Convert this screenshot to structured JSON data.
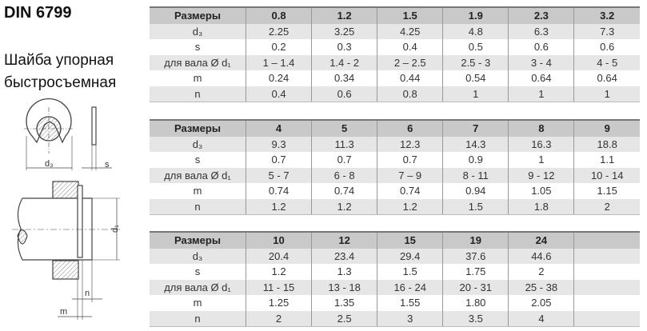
{
  "title": "DIN 6799",
  "subtitle_lines": [
    "Шайба упорная",
    "быстросъемная"
  ],
  "drawing": {
    "labels": {
      "d3": "d₃",
      "s": "s",
      "d1": "d₁",
      "n": "n",
      "m": "m"
    }
  },
  "tables": [
    {
      "header": [
        "Размеры",
        "0.8",
        "1.2",
        "1.5",
        "1.9",
        "2.3",
        "3.2"
      ],
      "rows": [
        [
          "d₃",
          "2.25",
          "3.25",
          "4.25",
          "4.8",
          "6.3",
          "7.3"
        ],
        [
          "s",
          "0.2",
          "0.3",
          "0.4",
          "0.5",
          "0.6",
          "0.6"
        ],
        [
          "для вала Ø d₁",
          "1 – 1.4",
          "1.4 - 2",
          "2 – 2.5",
          "2.5 - 3",
          "3 - 4",
          "4 - 5"
        ],
        [
          "m",
          "0.24",
          "0.34",
          "0.44",
          "0.54",
          "0.64",
          "0.64"
        ],
        [
          "n",
          "0.4",
          "0.6",
          "0.8",
          "1",
          "1",
          "1"
        ]
      ]
    },
    {
      "header": [
        "Размеры",
        "4",
        "5",
        "6",
        "7",
        "8",
        "9"
      ],
      "rows": [
        [
          "d₃",
          "9.3",
          "11.3",
          "12.3",
          "14.3",
          "16.3",
          "18.8"
        ],
        [
          "s",
          "0.7",
          "0.7",
          "0.7",
          "0.9",
          "1",
          "1.1"
        ],
        [
          "для вала Ø d₁",
          "5 - 7",
          "6 - 8",
          "7 – 9",
          "8 - 11",
          "9 - 12",
          "10 - 14"
        ],
        [
          "m",
          "0.74",
          "0.74",
          "0.74",
          "0.94",
          "1.05",
          "1.15"
        ],
        [
          "n",
          "1.2",
          "1.2",
          "1.2",
          "1.5",
          "1.8",
          "2"
        ]
      ]
    },
    {
      "header": [
        "Размеры",
        "10",
        "12",
        "15",
        "19",
        "24",
        ""
      ],
      "rows": [
        [
          "d₃",
          "20.4",
          "23.4",
          "29.4",
          "37.6",
          "44.6",
          ""
        ],
        [
          "s",
          "1.2",
          "1.3",
          "1.5",
          "1.75",
          "2",
          ""
        ],
        [
          "для вала Ø d₁",
          "11 - 15",
          "13 - 18",
          "16 - 24",
          "20 - 31",
          "25 - 38",
          ""
        ],
        [
          "m",
          "1.25",
          "1.35",
          "1.55",
          "1.80",
          "2.05",
          ""
        ],
        [
          "n",
          "2",
          "2.5",
          "3",
          "3.5",
          "4",
          ""
        ]
      ]
    }
  ]
}
